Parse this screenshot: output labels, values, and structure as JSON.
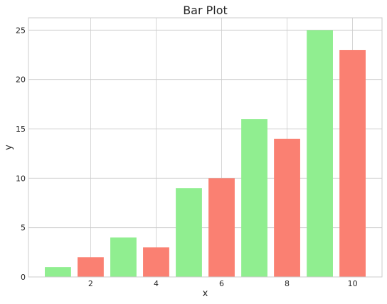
{
  "chart_data": {
    "type": "bar",
    "title": "Bar Plot",
    "xlabel": "x",
    "ylabel": "y",
    "x": [
      1,
      2,
      3,
      4,
      5,
      6,
      7,
      8,
      9,
      10
    ],
    "values": [
      1,
      2,
      4,
      3,
      9,
      10,
      16,
      14,
      25,
      23
    ],
    "bar_colors": [
      "#90ee90",
      "#fa8072",
      "#90ee90",
      "#fa8072",
      "#90ee90",
      "#fa8072",
      "#90ee90",
      "#fa8072",
      "#90ee90",
      "#fa8072"
    ],
    "xlim": [
      0.1,
      10.9
    ],
    "ylim": [
      0,
      26.25
    ],
    "xticks": [
      2,
      4,
      6,
      8,
      10
    ],
    "yticks": [
      0,
      5,
      10,
      15,
      20,
      25
    ],
    "grid": true
  }
}
